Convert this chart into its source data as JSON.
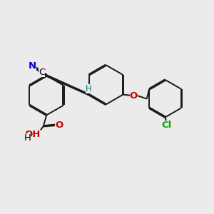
{
  "bg_color": "#ebebeb",
  "bond_color": "#1a1a1a",
  "bond_width": 1.4,
  "dbo": 0.07,
  "atom_colors": {
    "N": "#0000cc",
    "O": "#cc0000",
    "Cl": "#00aa00",
    "H": "#008080",
    "C": "#000000"
  },
  "font_size": 9.5
}
